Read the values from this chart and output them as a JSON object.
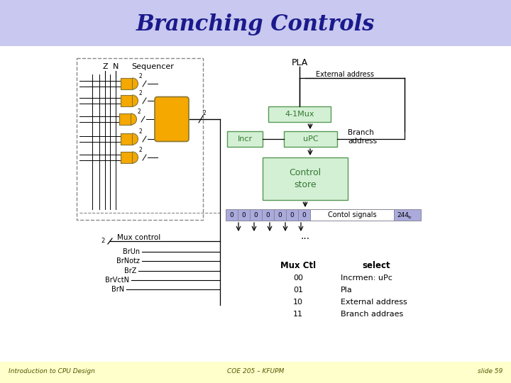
{
  "title": "Branching Controls",
  "title_color": "#1a1a8c",
  "title_bg_color": "#c8c8f0",
  "footer_bg_color": "#ffffcc",
  "footer_left": "Introduction to CPU Design",
  "footer_center": "COE 205 – KFUPM",
  "footer_right": "slide 59",
  "bg_color": "#ffffff",
  "gate_color": "#f5a800",
  "gate_edge": "#888855",
  "box_green_fill": "#d4f0d4",
  "box_green_edge": "#559955",
  "box_blue_fill": "#aaaadd",
  "box_blue_edge": "#666688",
  "line_color": "#000000",
  "gray_line": "#777777"
}
